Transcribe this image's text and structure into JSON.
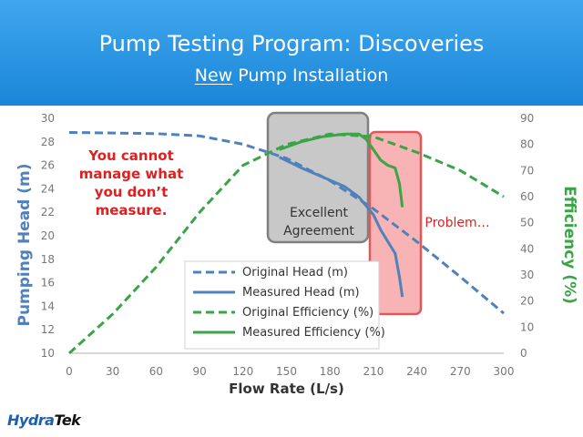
{
  "slide": {
    "title": "Pump Testing Program: Discoveries",
    "subtitle_underlined": "New",
    "subtitle_rest": " Pump Installation",
    "logo_left": "Hydra",
    "logo_right": "Tek"
  },
  "chart_data": {
    "type": "line",
    "xlabel": "Flow Rate (L/s)",
    "ylabel": "Pumping Head (m)",
    "y2label": "Efficiency (%)",
    "xlim": [
      0,
      300
    ],
    "ylim": [
      10,
      30
    ],
    "y2lim": [
      0,
      90
    ],
    "x_ticks": [
      "0",
      "30",
      "60",
      "90",
      "120",
      "150",
      "180",
      "210",
      "240",
      "270",
      "300"
    ],
    "y_ticks": [
      "10",
      "12",
      "14",
      "16",
      "18",
      "20",
      "22",
      "24",
      "26",
      "28",
      "30"
    ],
    "y2_ticks": [
      "0",
      "10",
      "20",
      "30",
      "40",
      "50",
      "60",
      "70",
      "80",
      "90"
    ],
    "grid": false,
    "legend_position": "bottom-center",
    "series": [
      {
        "name": "Original Head (m)",
        "axis": "left",
        "style": "dashed",
        "color": "#4f81bd",
        "x": [
          0,
          30,
          60,
          90,
          120,
          150,
          180,
          210,
          240,
          270,
          300
        ],
        "y": [
          28.8,
          28.75,
          28.7,
          28.5,
          27.8,
          26.6,
          24.7,
          22.3,
          19.5,
          16.5,
          13.4
        ]
      },
      {
        "name": "Measured Head (m)",
        "axis": "left",
        "style": "solid",
        "color": "#4f81bd",
        "x": [
          145,
          160,
          175,
          190,
          200,
          210,
          215,
          220,
          225,
          228,
          230
        ],
        "y": [
          26.7,
          25.8,
          25.0,
          24.2,
          23.3,
          21.8,
          20.5,
          19.5,
          18.5,
          16.5,
          14.8
        ]
      },
      {
        "name": "Original Efficiency (%)",
        "axis": "right",
        "style": "dashed",
        "color": "#3aa447",
        "x": [
          0,
          30,
          60,
          90,
          120,
          150,
          180,
          210,
          240,
          270,
          300
        ],
        "y": [
          0,
          15,
          33,
          54,
          72,
          80,
          84,
          83,
          77,
          70,
          60
        ]
      },
      {
        "name": "Measured Efficiency (%)",
        "axis": "right",
        "style": "solid",
        "color": "#3aa447",
        "x": [
          145,
          160,
          175,
          190,
          200,
          205,
          210,
          215,
          220,
          225,
          228,
          230
        ],
        "y": [
          78,
          81,
          83,
          84,
          84,
          82,
          78,
          74,
          72,
          71,
          65,
          56
        ]
      }
    ],
    "annotations": [
      {
        "id": "manage",
        "lines": [
          "You cannot",
          "manage what",
          "you don’t",
          "measure."
        ],
        "color": "#e02020"
      },
      {
        "id": "agreement",
        "lines": [
          "Excellent",
          "Agreement"
        ],
        "color": "#333333",
        "box_fill": "#c8c8c8",
        "box_stroke": "#808080"
      },
      {
        "id": "problem",
        "lines": [
          "Problem…"
        ],
        "color": "#e02020",
        "box_fill": "#f7a7a7",
        "box_stroke": "#e05858"
      }
    ],
    "colors": {
      "left_axis_label": "#4f81bd",
      "right_axis_label": "#3aa447",
      "x_axis_label": "#333333",
      "tick_labels": "#777777"
    }
  }
}
